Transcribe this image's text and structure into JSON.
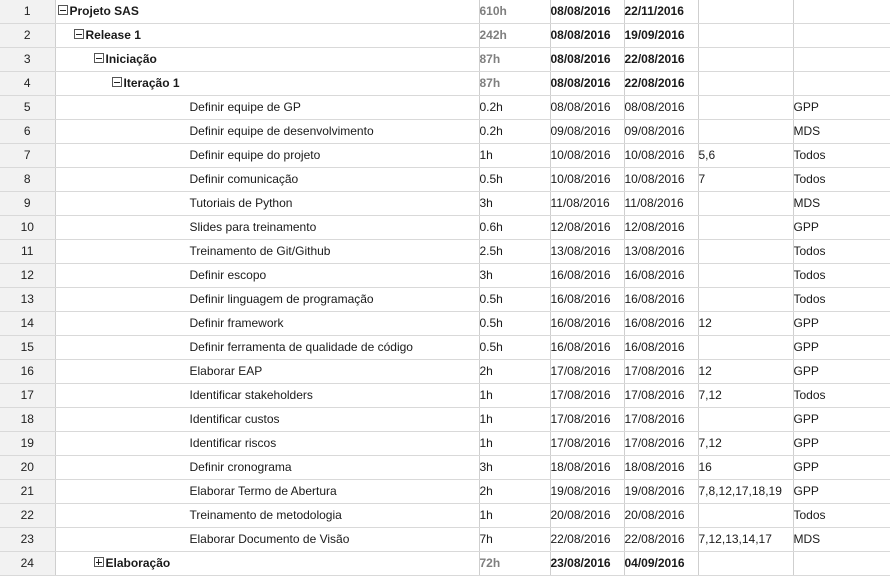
{
  "rows": [
    {
      "num": "1",
      "name": "Projeto SAS",
      "work": "610h",
      "start": "08/08/2016",
      "end": "22/11/2016",
      "pred": "",
      "res": "",
      "summary": true,
      "level": 0,
      "toggle": "collapse"
    },
    {
      "num": "2",
      "name": "Release 1",
      "work": "242h",
      "start": "08/08/2016",
      "end": "19/09/2016",
      "pred": "",
      "res": "",
      "summary": true,
      "level": 1,
      "toggle": "collapse"
    },
    {
      "num": "3",
      "name": "Iniciação",
      "work": "87h",
      "start": "08/08/2016",
      "end": "22/08/2016",
      "pred": "",
      "res": "",
      "summary": true,
      "level": 2,
      "toggle": "collapse"
    },
    {
      "num": "4",
      "name": "Iteração 1",
      "work": "87h",
      "start": "08/08/2016",
      "end": "22/08/2016",
      "pred": "",
      "res": "",
      "summary": true,
      "level": 3,
      "toggle": "collapse"
    },
    {
      "num": "5",
      "name": "Definir equipe de GP",
      "work": "0.2h",
      "start": "08/08/2016",
      "end": "08/08/2016",
      "pred": "",
      "res": "GPP",
      "summary": false,
      "level": 4
    },
    {
      "num": "6",
      "name": "Definir equipe de desenvolvimento",
      "work": "0.2h",
      "start": "09/08/2016",
      "end": "09/08/2016",
      "pred": "",
      "res": "MDS",
      "summary": false,
      "level": 4
    },
    {
      "num": "7",
      "name": "Definir equipe do projeto",
      "work": "1h",
      "start": "10/08/2016",
      "end": "10/08/2016",
      "pred": "5,6",
      "res": "Todos",
      "summary": false,
      "level": 4
    },
    {
      "num": "8",
      "name": "Definir comunicação",
      "work": "0.5h",
      "start": "10/08/2016",
      "end": "10/08/2016",
      "pred": "7",
      "res": "Todos",
      "summary": false,
      "level": 4
    },
    {
      "num": "9",
      "name": "Tutoriais de Python",
      "work": "3h",
      "start": "11/08/2016",
      "end": "11/08/2016",
      "pred": "",
      "res": "MDS",
      "summary": false,
      "level": 4
    },
    {
      "num": "10",
      "name": "Slides para treinamento",
      "work": "0.6h",
      "start": "12/08/2016",
      "end": "12/08/2016",
      "pred": "",
      "res": "GPP",
      "summary": false,
      "level": 4
    },
    {
      "num": "11",
      "name": "Treinamento de Git/Github",
      "work": "2.5h",
      "start": "13/08/2016",
      "end": "13/08/2016",
      "pred": "",
      "res": "Todos",
      "summary": false,
      "level": 4
    },
    {
      "num": "12",
      "name": "Definir escopo",
      "work": "3h",
      "start": "16/08/2016",
      "end": "16/08/2016",
      "pred": "",
      "res": "Todos",
      "summary": false,
      "level": 4
    },
    {
      "num": "13",
      "name": "Definir linguagem de programação",
      "work": "0.5h",
      "start": "16/08/2016",
      "end": "16/08/2016",
      "pred": "",
      "res": "Todos",
      "summary": false,
      "level": 4
    },
    {
      "num": "14",
      "name": "Definir framework",
      "work": "0.5h",
      "start": "16/08/2016",
      "end": "16/08/2016",
      "pred": "12",
      "res": "GPP",
      "summary": false,
      "level": 4
    },
    {
      "num": "15",
      "name": "Definir ferramenta de qualidade de código",
      "work": "0.5h",
      "start": "16/08/2016",
      "end": "16/08/2016",
      "pred": "",
      "res": "GPP",
      "summary": false,
      "level": 4
    },
    {
      "num": "16",
      "name": "Elaborar EAP",
      "work": "2h",
      "start": "17/08/2016",
      "end": "17/08/2016",
      "pred": "12",
      "res": "GPP",
      "summary": false,
      "level": 4
    },
    {
      "num": "17",
      "name": "Identificar stakeholders",
      "work": "1h",
      "start": "17/08/2016",
      "end": "17/08/2016",
      "pred": "7,12",
      "res": "Todos",
      "summary": false,
      "level": 4
    },
    {
      "num": "18",
      "name": "Identificar custos",
      "work": "1h",
      "start": "17/08/2016",
      "end": "17/08/2016",
      "pred": "",
      "res": "GPP",
      "summary": false,
      "level": 4
    },
    {
      "num": "19",
      "name": "Identificar riscos",
      "work": "1h",
      "start": "17/08/2016",
      "end": "17/08/2016",
      "pred": "7,12",
      "res": "GPP",
      "summary": false,
      "level": 4
    },
    {
      "num": "20",
      "name": "Definir cronograma",
      "work": "3h",
      "start": "18/08/2016",
      "end": "18/08/2016",
      "pred": "16",
      "res": "GPP",
      "summary": false,
      "level": 4
    },
    {
      "num": "21",
      "name": "Elaborar Termo de Abertura",
      "work": "2h",
      "start": "19/08/2016",
      "end": "19/08/2016",
      "pred": "7,8,12,17,18,19",
      "res": "GPP",
      "summary": false,
      "level": 4
    },
    {
      "num": "22",
      "name": "Treinamento de metodologia",
      "work": "1h",
      "start": "20/08/2016",
      "end": "20/08/2016",
      "pred": "",
      "res": "Todos",
      "summary": false,
      "level": 4
    },
    {
      "num": "23",
      "name": "Elaborar Documento de Visão",
      "work": "7h",
      "start": "22/08/2016",
      "end": "22/08/2016",
      "pred": "7,12,13,14,17",
      "res": "MDS",
      "summary": false,
      "level": 4
    },
    {
      "num": "24",
      "name": "Elaboração",
      "work": "72h",
      "start": "23/08/2016",
      "end": "04/09/2016",
      "pred": "",
      "res": "",
      "summary": true,
      "level": 2,
      "toggle": "expand"
    }
  ]
}
